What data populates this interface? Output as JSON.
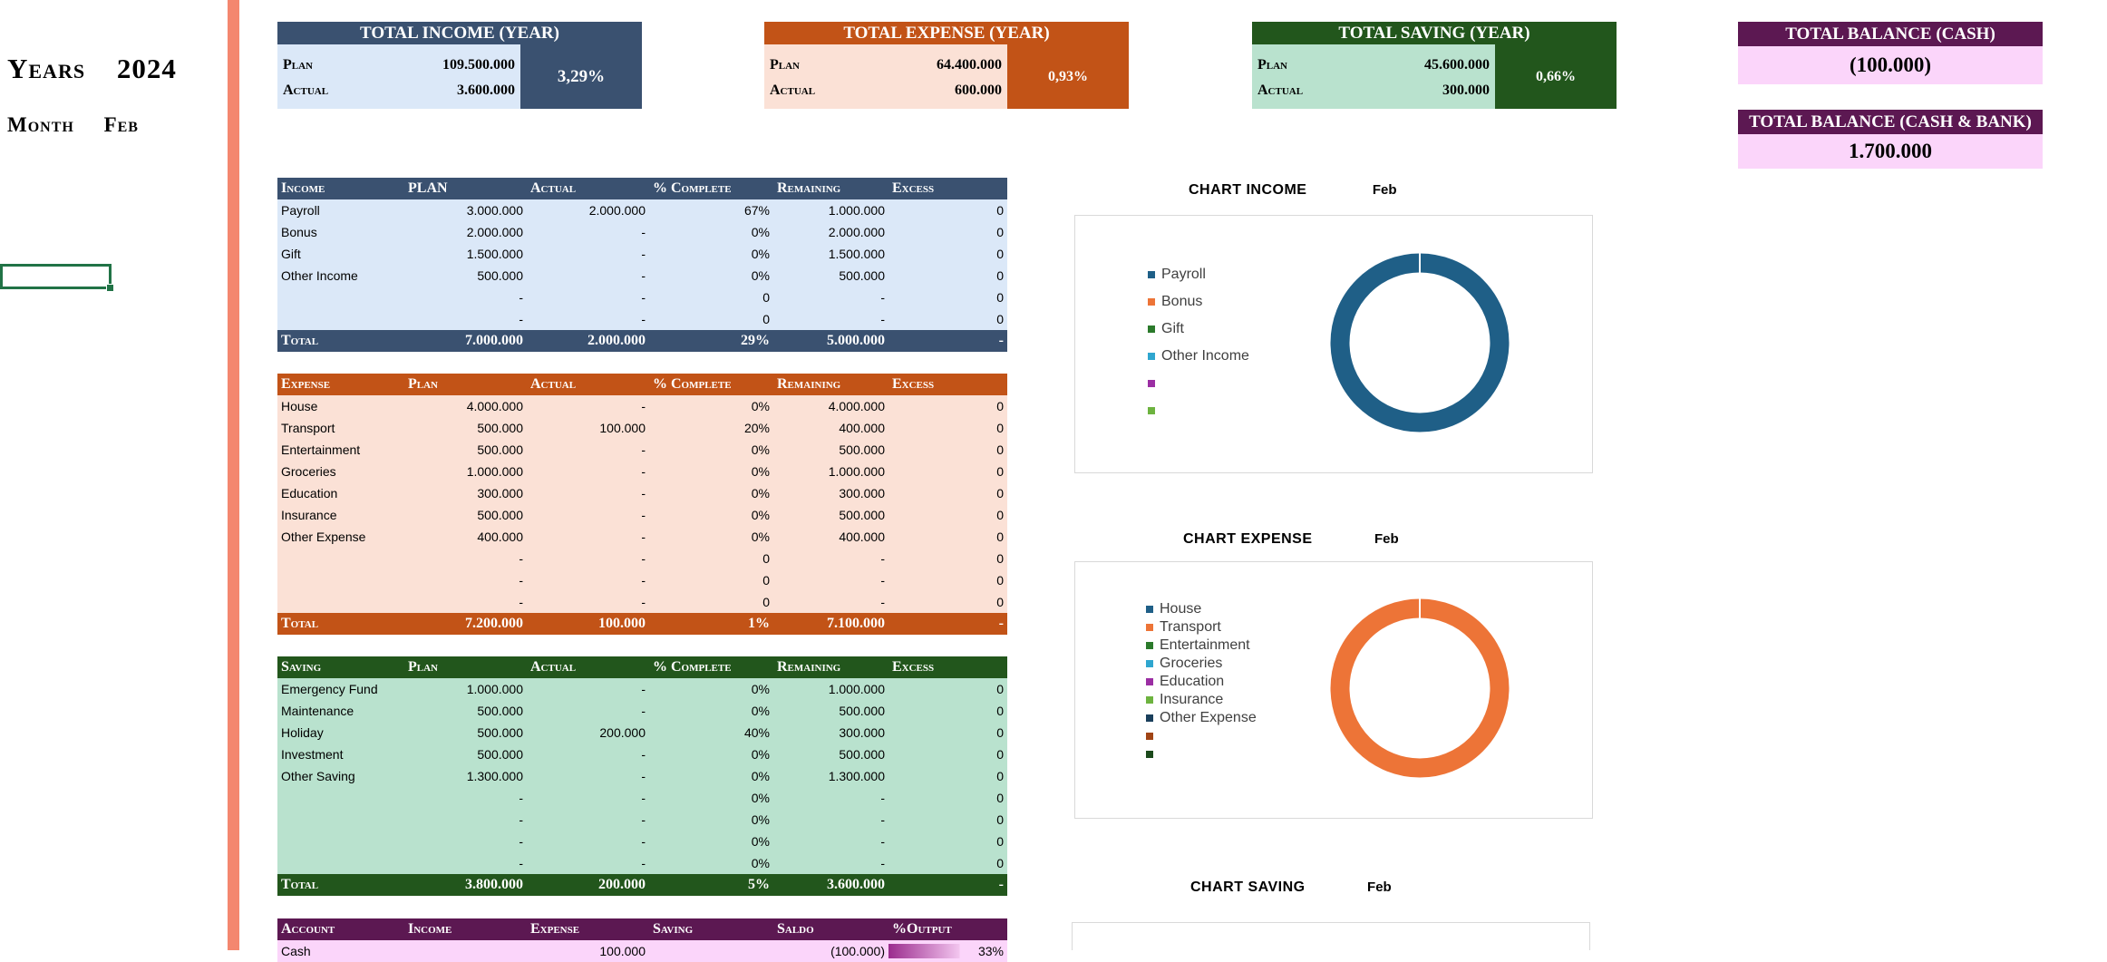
{
  "sidebar": {
    "years_label": "Years",
    "year_value": "2024",
    "month_label": "Month",
    "month_value": "Feb"
  },
  "summary": {
    "income": {
      "title": "TOTAL INCOME (YEAR)",
      "plan_label": "Plan",
      "plan": "109.500.000",
      "actual_label": "Actual",
      "actual": "3.600.000",
      "pct": "3,29%",
      "color_header": "#3a5170",
      "color_body": "#dbe8f8"
    },
    "expense": {
      "title": "TOTAL EXPENSE (YEAR)",
      "plan_label": "Plan",
      "plan": "64.400.000",
      "actual_label": "Actual",
      "actual": "600.000",
      "pct": "0,93%",
      "color_header": "#c25317",
      "color_body": "#fbe1d6"
    },
    "saving": {
      "title": "TOTAL SAVING (YEAR)",
      "plan_label": "Plan",
      "plan": "45.600.000",
      "actual_label": "Actual",
      "actual": "300.000",
      "pct": "0,66%",
      "color_header": "#22561c",
      "color_body": "#b9e2ce"
    }
  },
  "balance": {
    "cash": {
      "title": "TOTAL BALANCE (CASH)",
      "value": "(100.000)"
    },
    "cash_bank": {
      "title": "TOTAL BALANCE (CASH & BANK)",
      "value": "1.700.000"
    }
  },
  "income_table": {
    "headers": [
      "Income",
      "PLAN",
      "Actual",
      "% Complete",
      "Remaining",
      "Excess"
    ],
    "rows": [
      [
        "Payroll",
        "3.000.000",
        "2.000.000",
        "67%",
        "1.000.000",
        "0"
      ],
      [
        "Bonus",
        "2.000.000",
        "-",
        "0%",
        "2.000.000",
        "0"
      ],
      [
        "Gift",
        "1.500.000",
        "-",
        "0%",
        "1.500.000",
        "0"
      ],
      [
        "Other Income",
        "500.000",
        "-",
        "0%",
        "500.000",
        "0"
      ],
      [
        "",
        "-",
        "-",
        "0",
        "-",
        "0"
      ],
      [
        "",
        "-",
        "-",
        "0",
        "-",
        "0"
      ]
    ],
    "total": [
      "Total",
      "7.000.000",
      "2.000.000",
      "29%",
      "5.000.000",
      "-"
    ]
  },
  "expense_table": {
    "headers": [
      "Expense",
      "Plan",
      "Actual",
      "% Complete",
      "Remaining",
      "Excess"
    ],
    "rows": [
      [
        "House",
        "4.000.000",
        "-",
        "0%",
        "4.000.000",
        "0"
      ],
      [
        "Transport",
        "500.000",
        "100.000",
        "20%",
        "400.000",
        "0"
      ],
      [
        "Entertainment",
        "500.000",
        "-",
        "0%",
        "500.000",
        "0"
      ],
      [
        "Groceries",
        "1.000.000",
        "-",
        "0%",
        "1.000.000",
        "0"
      ],
      [
        "Education",
        "300.000",
        "-",
        "0%",
        "300.000",
        "0"
      ],
      [
        "Insurance",
        "500.000",
        "-",
        "0%",
        "500.000",
        "0"
      ],
      [
        "Other Expense",
        "400.000",
        "-",
        "0%",
        "400.000",
        "0"
      ],
      [
        "",
        "-",
        "-",
        "0",
        "-",
        "0"
      ],
      [
        "",
        "-",
        "-",
        "0",
        "-",
        "0"
      ],
      [
        "",
        "-",
        "-",
        "0",
        "-",
        "0"
      ]
    ],
    "total": [
      "Total",
      "7.200.000",
      "100.000",
      "1%",
      "7.100.000",
      "-"
    ]
  },
  "saving_table": {
    "headers": [
      "Saving",
      "Plan",
      "Actual",
      "% Complete",
      "Remaining",
      "Excess"
    ],
    "rows": [
      [
        "Emergency Fund",
        "1.000.000",
        "-",
        "0%",
        "1.000.000",
        "0"
      ],
      [
        "Maintenance",
        "500.000",
        "-",
        "0%",
        "500.000",
        "0"
      ],
      [
        "Holiday",
        "500.000",
        "200.000",
        "40%",
        "300.000",
        "0"
      ],
      [
        "Investment",
        "500.000",
        "-",
        "0%",
        "500.000",
        "0"
      ],
      [
        "Other Saving",
        "1.300.000",
        "-",
        "0%",
        "1.300.000",
        "0"
      ],
      [
        "",
        "-",
        "-",
        "0%",
        "-",
        "0"
      ],
      [
        "",
        "-",
        "-",
        "0%",
        "-",
        "0"
      ],
      [
        "",
        "-",
        "-",
        "0%",
        "-",
        "0"
      ],
      [
        "",
        "-",
        "-",
        "0%",
        "-",
        "0"
      ]
    ],
    "total": [
      "Total",
      "3.800.000",
      "200.000",
      "5%",
      "3.600.000",
      "-"
    ]
  },
  "account_table": {
    "headers": [
      "Account",
      "Income",
      "Expense",
      "Saving",
      "Saldo",
      "%Output"
    ],
    "rows": [
      [
        "Cash",
        "",
        "100.000",
        "",
        "(100.000)",
        "33%"
      ]
    ]
  },
  "charts": {
    "income": {
      "title": "CHART INCOME",
      "month": "Feb"
    },
    "expense": {
      "title": "CHART EXPENSE",
      "month": "Feb"
    },
    "saving": {
      "title": "CHART SAVING",
      "month": "Feb"
    }
  },
  "chart_data": [
    {
      "type": "pie",
      "title": "",
      "categories": [
        "Payroll",
        "Bonus",
        "Gift",
        "Other Income",
        "",
        ""
      ],
      "values": [
        2000000,
        0,
        0,
        0,
        0,
        0
      ],
      "colors": [
        "#1f5f87",
        "#ed7437",
        "#2b7a2b",
        "#2fa6cf",
        "#9b2ea3",
        "#6db33f"
      ]
    },
    {
      "type": "pie",
      "title": "",
      "categories": [
        "House",
        "Transport",
        "Entertainment",
        "Groceries",
        "Education",
        "Insurance",
        "Other Expense",
        "",
        ""
      ],
      "values": [
        0,
        100000,
        0,
        0,
        0,
        0,
        0,
        0,
        0
      ],
      "colors": [
        "#1f5f87",
        "#ed7437",
        "#2b7a2b",
        "#2fa6cf",
        "#9b2ea3",
        "#6db33f",
        "#1a3f5c",
        "#a04415",
        "#1c4a1c"
      ]
    }
  ]
}
